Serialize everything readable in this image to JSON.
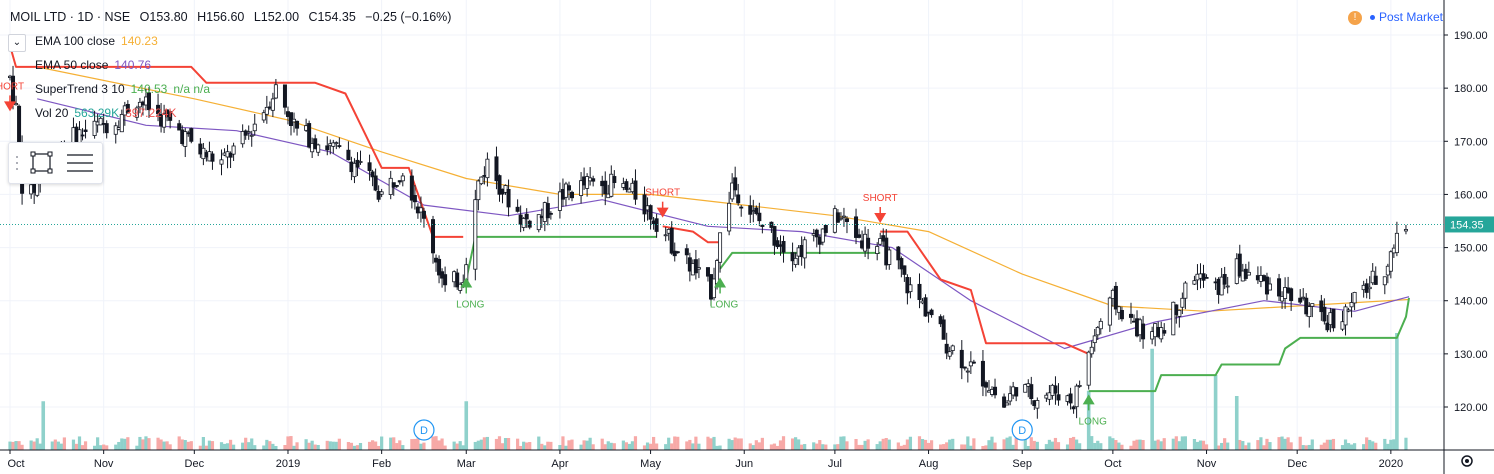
{
  "header": {
    "symbol": "MOIL LTD · 1D · NSE",
    "open_label": "O",
    "open": "153.80",
    "high_label": "H",
    "high": "156.60",
    "low_label": "L",
    "low": "152.00",
    "close_label": "C",
    "close": "154.35",
    "change": "−0.25 (−0.16%)"
  },
  "status": {
    "badge": "!",
    "label": "Post Market"
  },
  "indicators": [
    {
      "name": "EMA 100 close",
      "value": "140.23",
      "color": "#f5b035"
    },
    {
      "name": "EMA 50 close",
      "value": "140.76",
      "color": "#7e57c2"
    },
    {
      "name": "SuperTrend 3 10",
      "value": "140.53",
      "extra": "n/a n/a",
      "color": "#4caf50"
    },
    {
      "name": "Vol 20",
      "value": "563.29K",
      "extra": "397.224K",
      "color": "#26a69a",
      "extra_color": "#ef5350"
    }
  ],
  "colors": {
    "up": "#26a69a",
    "down": "#ef5350",
    "candle": "#131722",
    "ema100": "#f5b035",
    "ema50": "#7e57c2",
    "st_up": "#4caf50",
    "st_down": "#f44336",
    "vol_up": "#8fd1cb",
    "vol_down": "#f7a9a7",
    "last_price_bg": "#26a69a",
    "grid": "#f0f3fa",
    "axis_text": "#131722",
    "dividend": "#2196f3"
  },
  "chart_data": {
    "type": "candlestick",
    "y_axis": {
      "ticks": [
        190,
        180,
        170,
        160,
        150,
        140,
        130,
        120
      ],
      "labels": [
        "190.00",
        "180.00",
        "170.00",
        "160.00",
        "150.00",
        "140.00",
        "130.00",
        "120.00"
      ],
      "range": [
        115,
        194
      ]
    },
    "x_axis": {
      "labels": [
        "Oct",
        "Nov",
        "Dec",
        "2019",
        "Feb",
        "Mar",
        "Apr",
        "May",
        "Jun",
        "Jul",
        "Aug",
        "Sep",
        "Oct",
        "Nov",
        "Dec",
        "2020"
      ],
      "range": [
        "2018-10-01",
        "2020-01-08"
      ]
    },
    "last_price": "154.35",
    "price_series": [
      {
        "date": "2018-10-01",
        "close": 182
      },
      {
        "date": "2018-10-03",
        "close": 176
      },
      {
        "date": "2018-10-05",
        "close": 162
      },
      {
        "date": "2018-10-08",
        "close": 160
      },
      {
        "date": "2018-10-12",
        "close": 165
      },
      {
        "date": "2018-10-19",
        "close": 170
      },
      {
        "date": "2018-10-26",
        "close": 172
      },
      {
        "date": "2018-11-05",
        "close": 174
      },
      {
        "date": "2018-11-12",
        "close": 178
      },
      {
        "date": "2018-11-19",
        "close": 175
      },
      {
        "date": "2018-11-26",
        "close": 172
      },
      {
        "date": "2018-12-03",
        "close": 168
      },
      {
        "date": "2018-12-10",
        "close": 166
      },
      {
        "date": "2018-12-17",
        "close": 170
      },
      {
        "date": "2018-12-24",
        "close": 176
      },
      {
        "date": "2018-12-28",
        "close": 180
      },
      {
        "date": "2019-01-04",
        "close": 172
      },
      {
        "date": "2019-01-11",
        "close": 170
      },
      {
        "date": "2019-01-18",
        "close": 168
      },
      {
        "date": "2019-01-25",
        "close": 165
      },
      {
        "date": "2019-02-01",
        "close": 160
      },
      {
        "date": "2019-02-08",
        "close": 165
      },
      {
        "date": "2019-02-13",
        "close": 158
      },
      {
        "date": "2019-02-18",
        "close": 150
      },
      {
        "date": "2019-02-22",
        "close": 142
      },
      {
        "date": "2019-02-28",
        "close": 145
      },
      {
        "date": "2019-03-05",
        "close": 162
      },
      {
        "date": "2019-03-08",
        "close": 166
      },
      {
        "date": "2019-03-14",
        "close": 160
      },
      {
        "date": "2019-03-20",
        "close": 155
      },
      {
        "date": "2019-03-26",
        "close": 156
      },
      {
        "date": "2019-04-02",
        "close": 160
      },
      {
        "date": "2019-04-10",
        "close": 162
      },
      {
        "date": "2019-04-18",
        "close": 162
      },
      {
        "date": "2019-04-26",
        "close": 160
      },
      {
        "date": "2019-05-03",
        "close": 155
      },
      {
        "date": "2019-05-09",
        "close": 150
      },
      {
        "date": "2019-05-15",
        "close": 146
      },
      {
        "date": "2019-05-21",
        "close": 142
      },
      {
        "date": "2019-05-24",
        "close": 152
      },
      {
        "date": "2019-05-28",
        "close": 162
      },
      {
        "date": "2019-06-04",
        "close": 156
      },
      {
        "date": "2019-06-11",
        "close": 152
      },
      {
        "date": "2019-06-18",
        "close": 149
      },
      {
        "date": "2019-06-25",
        "close": 152
      },
      {
        "date": "2019-07-02",
        "close": 156
      },
      {
        "date": "2019-07-09",
        "close": 152
      },
      {
        "date": "2019-07-16",
        "close": 150
      },
      {
        "date": "2019-07-22",
        "close": 146
      },
      {
        "date": "2019-07-26",
        "close": 142
      },
      {
        "date": "2019-08-01",
        "close": 138
      },
      {
        "date": "2019-08-07",
        "close": 132
      },
      {
        "date": "2019-08-14",
        "close": 128
      },
      {
        "date": "2019-08-20",
        "close": 125
      },
      {
        "date": "2019-08-26",
        "close": 120
      },
      {
        "date": "2019-08-30",
        "close": 124
      },
      {
        "date": "2019-09-05",
        "close": 122
      },
      {
        "date": "2019-09-12",
        "close": 123
      },
      {
        "date": "2019-09-18",
        "close": 121
      },
      {
        "date": "2019-09-23",
        "close": 130
      },
      {
        "date": "2019-09-26",
        "close": 135
      },
      {
        "date": "2019-10-01",
        "close": 140
      },
      {
        "date": "2019-10-07",
        "close": 136
      },
      {
        "date": "2019-10-14",
        "close": 133
      },
      {
        "date": "2019-10-21",
        "close": 138
      },
      {
        "date": "2019-10-28",
        "close": 145
      },
      {
        "date": "2019-11-04",
        "close": 142
      },
      {
        "date": "2019-11-11",
        "close": 146
      },
      {
        "date": "2019-11-18",
        "close": 144
      },
      {
        "date": "2019-11-25",
        "close": 142
      },
      {
        "date": "2019-12-02",
        "close": 140
      },
      {
        "date": "2019-12-09",
        "close": 136
      },
      {
        "date": "2019-12-16",
        "close": 137
      },
      {
        "date": "2019-12-23",
        "close": 142
      },
      {
        "date": "2019-12-30",
        "close": 146
      },
      {
        "date": "2020-01-03",
        "close": 152
      },
      {
        "date": "2020-01-07",
        "close": 154.35
      }
    ],
    "ema100": [
      {
        "date": "2018-10-10",
        "value": 184
      },
      {
        "date": "2018-12-01",
        "value": 178
      },
      {
        "date": "2019-01-01",
        "value": 174
      },
      {
        "date": "2019-02-01",
        "value": 168
      },
      {
        "date": "2019-03-01",
        "value": 163
      },
      {
        "date": "2019-04-01",
        "value": 160
      },
      {
        "date": "2019-05-01",
        "value": 160
      },
      {
        "date": "2019-06-01",
        "value": 158
      },
      {
        "date": "2019-07-01",
        "value": 156
      },
      {
        "date": "2019-08-01",
        "value": 153
      },
      {
        "date": "2019-09-01",
        "value": 145
      },
      {
        "date": "2019-10-01",
        "value": 139
      },
      {
        "date": "2019-11-01",
        "value": 138
      },
      {
        "date": "2019-12-01",
        "value": 139
      },
      {
        "date": "2020-01-07",
        "value": 140.23
      }
    ],
    "ema50": [
      {
        "date": "2018-10-10",
        "value": 178
      },
      {
        "date": "2018-11-15",
        "value": 173
      },
      {
        "date": "2018-12-15",
        "value": 172
      },
      {
        "date": "2019-01-15",
        "value": 168
      },
      {
        "date": "2019-02-15",
        "value": 158
      },
      {
        "date": "2019-03-15",
        "value": 156
      },
      {
        "date": "2019-04-15",
        "value": 159
      },
      {
        "date": "2019-05-20",
        "value": 154
      },
      {
        "date": "2019-06-20",
        "value": 153
      },
      {
        "date": "2019-07-20",
        "value": 150
      },
      {
        "date": "2019-08-15",
        "value": 140
      },
      {
        "date": "2019-09-15",
        "value": 131
      },
      {
        "date": "2019-10-15",
        "value": 136
      },
      {
        "date": "2019-11-20",
        "value": 140
      },
      {
        "date": "2019-12-20",
        "value": 138
      },
      {
        "date": "2020-01-07",
        "value": 140.76
      }
    ],
    "supertrend_down": [
      [
        {
          "date": "2018-10-01",
          "value": 188
        },
        {
          "date": "2018-10-03",
          "value": 184
        },
        {
          "date": "2018-11-30",
          "value": 184
        },
        {
          "date": "2018-12-05",
          "value": 181
        },
        {
          "date": "2019-01-10",
          "value": 181
        },
        {
          "date": "2019-01-20",
          "value": 179
        },
        {
          "date": "2019-02-01",
          "value": 165
        },
        {
          "date": "2019-02-10",
          "value": 165
        },
        {
          "date": "2019-02-18",
          "value": 152
        },
        {
          "date": "2019-02-28",
          "value": 152
        }
      ],
      [
        {
          "date": "2019-05-05",
          "value": 154
        },
        {
          "date": "2019-05-15",
          "value": 153
        },
        {
          "date": "2019-05-20",
          "value": 151
        },
        {
          "date": "2019-05-24",
          "value": 151
        }
      ],
      [
        {
          "date": "2019-07-16",
          "value": 153
        },
        {
          "date": "2019-07-25",
          "value": 153
        },
        {
          "date": "2019-08-05",
          "value": 144
        },
        {
          "date": "2019-08-15",
          "value": 142
        },
        {
          "date": "2019-08-20",
          "value": 132
        },
        {
          "date": "2019-09-15",
          "value": 132
        },
        {
          "date": "2019-09-23",
          "value": 130
        }
      ]
    ],
    "supertrend_up": [
      [
        {
          "date": "2019-03-01",
          "value": 144
        },
        {
          "date": "2019-03-04",
          "value": 152
        },
        {
          "date": "2019-05-03",
          "value": 152
        }
      ],
      [
        {
          "date": "2019-05-24",
          "value": 146
        },
        {
          "date": "2019-05-28",
          "value": 149
        },
        {
          "date": "2019-07-16",
          "value": 149
        }
      ],
      [
        {
          "date": "2019-09-23",
          "value": 123
        },
        {
          "date": "2019-10-15",
          "value": 123
        },
        {
          "date": "2019-10-17",
          "value": 126
        },
        {
          "date": "2019-11-04",
          "value": 126
        },
        {
          "date": "2019-11-06",
          "value": 128
        },
        {
          "date": "2019-11-25",
          "value": 128
        },
        {
          "date": "2019-11-27",
          "value": 131
        },
        {
          "date": "2019-12-02",
          "value": 133
        },
        {
          "date": "2020-01-03",
          "value": 133
        },
        {
          "date": "2020-01-06",
          "value": 137
        },
        {
          "date": "2020-01-07",
          "value": 140.53
        }
      ]
    ],
    "signals": [
      {
        "type": "SHORT",
        "date": "2018-10-01",
        "value": 176,
        "label_text": "HORT"
      },
      {
        "type": "LONG",
        "date": "2019-03-01",
        "value": 144,
        "label_text": "LONG"
      },
      {
        "type": "SHORT",
        "date": "2019-05-05",
        "value": 156,
        "label_text": "SHORT"
      },
      {
        "type": "LONG",
        "date": "2019-05-24",
        "value": 144,
        "label_text": "LONG"
      },
      {
        "type": "SHORT",
        "date": "2019-07-16",
        "value": 155,
        "label_text": "SHORT"
      },
      {
        "type": "LONG",
        "date": "2019-09-23",
        "value": 122,
        "label_text": "LONG"
      }
    ],
    "dividends": [
      {
        "date": "2019-02-15",
        "label": "D"
      },
      {
        "date": "2019-09-01",
        "label": "D"
      }
    ],
    "volume_notes": "volume bars at bottom; last bar tall (≈563.29K)",
    "volume_spikes": [
      {
        "date": "2018-10-12",
        "rel": 0.35
      },
      {
        "date": "2019-03-01",
        "rel": 0.35
      },
      {
        "date": "2019-09-23",
        "rel": 0.45
      },
      {
        "date": "2019-10-14",
        "rel": 0.85
      },
      {
        "date": "2019-11-04",
        "rel": 0.6
      },
      {
        "date": "2019-11-11",
        "rel": 0.4
      },
      {
        "date": "2020-01-03",
        "rel": 1.0
      }
    ]
  }
}
